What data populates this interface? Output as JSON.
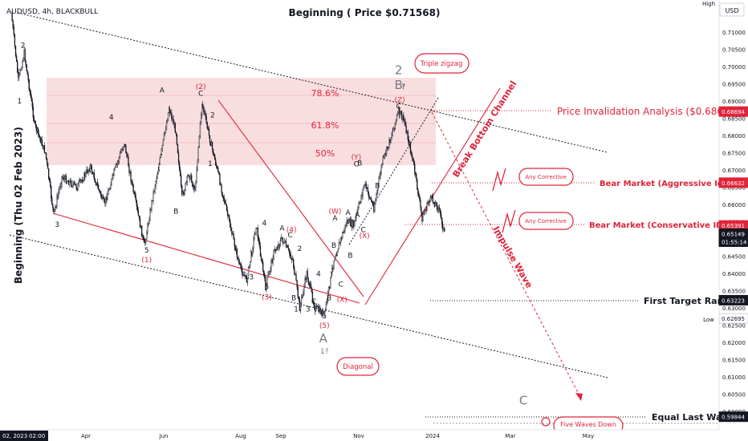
{
  "header": {
    "symbol": "AUDUSD, 4h, BLACKBULL",
    "headline": "Beginning ( Price $0.71568)",
    "vertical_note": "Beginning (Thu 02 Feb 2023)",
    "high_tag": "High",
    "currency": "USD"
  },
  "chart_data": {
    "type": "candlestick",
    "instrument": "AUDUSD",
    "timeframe": "4h",
    "x_ticks": [
      "Apr",
      "Jun",
      "Aug",
      "Sep",
      "Nov",
      "2024",
      "Mar",
      "May"
    ],
    "x_start_label": "02, 2023",
    "x_start_time": "02:00",
    "y_ticks": [
      0.71,
      0.705,
      0.7,
      0.695,
      0.69,
      0.685,
      0.68,
      0.675,
      0.67,
      0.665,
      0.66,
      0.655,
      0.65,
      0.645,
      0.64,
      0.635,
      0.63,
      0.625,
      0.62,
      0.615,
      0.61,
      0.605,
      0.6
    ],
    "ylim": [
      0.5975,
      0.7185
    ],
    "price_path_points": [
      [
        "2023-02-02",
        0.7157
      ],
      [
        "2023-02-08",
        0.696
      ],
      [
        "2023-02-13",
        0.704
      ],
      [
        "2023-02-22",
        0.683
      ],
      [
        "2023-03-03",
        0.675
      ],
      [
        "2023-03-10",
        0.657
      ],
      [
        "2023-03-17",
        0.668
      ],
      [
        "2023-03-30",
        0.665
      ],
      [
        "2023-04-10",
        0.671
      ],
      [
        "2023-04-22",
        0.66
      ],
      [
        "2023-05-01",
        0.67
      ],
      [
        "2023-05-09",
        0.678
      ],
      [
        "2023-05-16",
        0.665
      ],
      [
        "2023-05-26",
        0.648
      ],
      [
        "2023-06-02",
        0.662
      ],
      [
        "2023-06-09",
        0.674
      ],
      [
        "2023-06-16",
        0.688
      ],
      [
        "2023-06-22",
        0.681
      ],
      [
        "2023-06-27",
        0.662
      ],
      [
        "2023-07-03",
        0.669
      ],
      [
        "2023-07-08",
        0.664
      ],
      [
        "2023-07-14",
        0.6895
      ],
      [
        "2023-07-20",
        0.68
      ],
      [
        "2023-07-27",
        0.67
      ],
      [
        "2023-08-04",
        0.658
      ],
      [
        "2023-08-15",
        0.642
      ],
      [
        "2023-08-21",
        0.638
      ],
      [
        "2023-08-29",
        0.654
      ],
      [
        "2023-09-06",
        0.636
      ],
      [
        "2023-09-13",
        0.646
      ],
      [
        "2023-09-20",
        0.65
      ],
      [
        "2023-09-29",
        0.644
      ],
      [
        "2023-10-05",
        0.63
      ],
      [
        "2023-10-11",
        0.64
      ],
      [
        "2023-10-18",
        0.63
      ],
      [
        "2023-10-26",
        0.628
      ],
      [
        "2023-11-03",
        0.644
      ],
      [
        "2023-11-14",
        0.655
      ],
      [
        "2023-11-20",
        0.654
      ],
      [
        "2023-11-29",
        0.666
      ],
      [
        "2023-12-07",
        0.659
      ],
      [
        "2023-12-14",
        0.672
      ],
      [
        "2023-12-20",
        0.678
      ],
      [
        "2023-12-28",
        0.687
      ],
      [
        "2024-01-02",
        0.684
      ],
      [
        "2024-01-10",
        0.671
      ],
      [
        "2024-01-17",
        0.656
      ],
      [
        "2024-01-24",
        0.662
      ],
      [
        "2024-01-31",
        0.659
      ],
      [
        "2024-02-05",
        0.6515
      ]
    ],
    "price_tags": [
      {
        "text": "0.68694",
        "value": 0.68694,
        "color": "#e0243a"
      },
      {
        "text": "0.66632",
        "value": 0.66632,
        "color": "#e0243a"
      },
      {
        "text": "0.65391",
        "value": 0.65391,
        "color": "#e0243a"
      },
      {
        "text": "0.65149",
        "value": 0.65149,
        "color": "#131722"
      },
      {
        "text": "01:55:14",
        "value": 0.6492,
        "color": "#131722"
      },
      {
        "text": "0.63223",
        "value": 0.63223,
        "color": "#131722"
      },
      {
        "text": "0.62695",
        "value": 0.62695,
        "color": "#ffffff"
      },
      {
        "text": "0.59844",
        "value": 0.59844,
        "color": "#131722"
      }
    ],
    "low_tag": "Low",
    "fib_levels": [
      {
        "label": "78.6%",
        "value": 0.6885
      },
      {
        "label": "61.8%",
        "value": 0.6815
      },
      {
        "label": "50%",
        "value": 0.6765
      }
    ],
    "callouts": [
      {
        "text": "Price Invalidation Analysis ($0.68694)",
        "value": 0.68694
      },
      {
        "text": "Bear Market (Aggressive Idea)",
        "value": 0.66632
      },
      {
        "text": "Bear Market (Conservative IDEA)",
        "value": 0.65391
      },
      {
        "text": "First Target Range",
        "value": 0.63223
      },
      {
        "text": "Equal Last Wave",
        "value": 0.59844
      }
    ],
    "boxes": [
      "Triple zigzag",
      "Diagonal",
      "Any Corrective",
      "Any Corrective",
      "Five Waves Down"
    ],
    "channel_labels": [
      "Break Bottom Channel",
      "Impulse Wave"
    ],
    "wave_labels": [
      {
        "t": "2",
        "d": "2023-02-12",
        "v": 0.7055,
        "c": "#131722"
      },
      {
        "t": "1",
        "d": "2023-02-09",
        "v": 0.6893,
        "c": "#131722"
      },
      {
        "t": "3",
        "d": "2023-03-13",
        "v": 0.6535,
        "c": "#131722"
      },
      {
        "t": "4",
        "d": "2023-04-28",
        "v": 0.6847,
        "c": "#131722"
      },
      {
        "t": "5",
        "d": "2023-05-28",
        "v": 0.646,
        "c": "#131722"
      },
      {
        "t": "(1)",
        "d": "2023-05-28",
        "v": 0.6433,
        "c": "#e0243a"
      },
      {
        "t": "A",
        "d": "2023-06-10",
        "v": 0.6925,
        "c": "#131722"
      },
      {
        "t": "B",
        "d": "2023-06-22",
        "v": 0.6573,
        "c": "#131722"
      },
      {
        "t": "(2)",
        "d": "2023-07-13",
        "v": 0.6935,
        "c": "#e0243a"
      },
      {
        "t": "C",
        "d": "2023-07-13",
        "v": 0.6915,
        "c": "#131722"
      },
      {
        "t": "2",
        "d": "2023-07-23",
        "v": 0.6852,
        "c": "#131722"
      },
      {
        "t": "1",
        "d": "2023-07-21",
        "v": 0.6712,
        "c": "#131722"
      },
      {
        "t": "3",
        "d": "2023-08-25",
        "v": 0.6383,
        "c": "#131722"
      },
      {
        "t": "4",
        "d": "2023-09-05",
        "v": 0.654,
        "c": "#131722"
      },
      {
        "t": "5",
        "d": "2023-09-07",
        "v": 0.6355,
        "c": "#131722"
      },
      {
        "t": "(3)",
        "d": "2023-09-07",
        "v": 0.6325,
        "c": "#e0243a"
      },
      {
        "t": "(4)",
        "d": "2023-09-28",
        "v": 0.652,
        "c": "#e0243a"
      },
      {
        "t": "A",
        "d": "2023-09-20",
        "v": 0.6525,
        "c": "#131722"
      },
      {
        "t": "C",
        "d": "2023-09-27",
        "v": 0.6505,
        "c": "#131722"
      },
      {
        "t": "B",
        "d": "2023-09-30",
        "v": 0.6322,
        "c": "#131722"
      },
      {
        "t": "2",
        "d": "2023-10-05",
        "v": 0.6465,
        "c": "#131722"
      },
      {
        "t": "1",
        "d": "2023-10-02",
        "v": 0.629,
        "c": "#131722"
      },
      {
        "t": "3",
        "d": "2023-10-12",
        "v": 0.629,
        "c": "#131722"
      },
      {
        "t": "4",
        "d": "2023-10-21",
        "v": 0.6392,
        "c": "#131722"
      },
      {
        "t": "C",
        "d": "2023-10-17",
        "v": 0.6312,
        "c": "#131722"
      },
      {
        "t": "5",
        "d": "2023-10-26",
        "v": 0.627,
        "c": "#131722"
      },
      {
        "t": "(5)",
        "d": "2023-10-26",
        "v": 0.6242,
        "c": "#e0243a"
      },
      {
        "t": "A",
        "d": "2023-10-25",
        "v": 0.62,
        "c": "#787b86"
      },
      {
        "t": "1?",
        "d": "2023-10-26",
        "v": 0.6168,
        "c": "#787b86"
      },
      {
        "t": "B",
        "d": "2023-10-30",
        "v": 0.6322,
        "c": "#131722"
      },
      {
        "t": "(W)",
        "d": "2023-11-04",
        "v": 0.6573,
        "c": "#e0243a"
      },
      {
        "t": "A",
        "d": "2023-11-04",
        "v": 0.6553,
        "c": "#131722"
      },
      {
        "t": "B",
        "d": "2023-11-03",
        "v": 0.6475,
        "c": "#131722"
      },
      {
        "t": "C",
        "d": "2023-11-09",
        "v": 0.6362,
        "c": "#131722"
      },
      {
        "t": "(X)",
        "d": "2023-11-10",
        "v": 0.6318,
        "c": "#e0243a"
      },
      {
        "t": "A",
        "d": "2023-11-15",
        "v": 0.657,
        "c": "#131722"
      },
      {
        "t": "B",
        "d": "2023-11-17",
        "v": 0.6445,
        "c": "#131722"
      },
      {
        "t": "(Y)",
        "d": "2023-11-22",
        "v": 0.673,
        "c": "#e0243a"
      },
      {
        "t": "C",
        "d": "2023-11-22",
        "v": 0.671,
        "c": "#131722"
      },
      {
        "t": "B",
        "d": "2023-11-25",
        "v": 0.6713,
        "c": "#131722"
      },
      {
        "t": "A",
        "d": "2023-11-23",
        "v": 0.6563,
        "c": "#131722"
      },
      {
        "t": "C",
        "d": "2023-11-28",
        "v": 0.652,
        "c": "#131722"
      },
      {
        "t": "(X)",
        "d": "2023-11-29",
        "v": 0.6502,
        "c": "#e0243a"
      },
      {
        "t": "B",
        "d": "2023-12-10",
        "v": 0.6648,
        "c": "#131722"
      },
      {
        "t": "2",
        "d": "2023-12-28",
        "v": 0.6978,
        "c": "#787b86"
      },
      {
        "t": "B",
        "d": "2023-12-28",
        "v": 0.6935,
        "c": "#787b86"
      },
      {
        "t": "?",
        "d": "2024-01-01",
        "v": 0.6935,
        "c": "#131722"
      },
      {
        "t": "(Z)",
        "d": "2023-12-29",
        "v": 0.6897,
        "c": "#e0243a"
      },
      {
        "t": "C",
        "d": "2023-12-28",
        "v": 0.6878,
        "c": "#131722"
      },
      {
        "t": "C",
        "d": "2024-04-12",
        "v": 0.602,
        "c": "#787b86"
      }
    ]
  }
}
